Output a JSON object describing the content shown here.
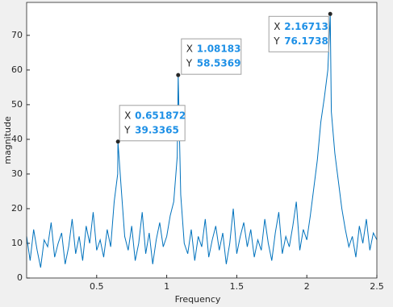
{
  "chart_data": {
    "type": "line",
    "x_label": "Frequency",
    "y_label": "magnitude",
    "x": [
      0,
      0.025,
      0.05,
      0.075,
      0.1,
      0.125,
      0.15,
      0.175,
      0.2,
      0.225,
      0.25,
      0.275,
      0.3,
      0.325,
      0.35,
      0.375,
      0.4,
      0.425,
      0.45,
      0.475,
      0.5,
      0.525,
      0.55,
      0.575,
      0.6,
      0.625,
      0.65,
      0.651872,
      0.675,
      0.7,
      0.725,
      0.75,
      0.775,
      0.8,
      0.825,
      0.85,
      0.875,
      0.9,
      0.925,
      0.95,
      0.975,
      1,
      1.025,
      1.05,
      1.075,
      1.08183,
      1.1,
      1.125,
      1.15,
      1.175,
      1.2,
      1.225,
      1.25,
      1.275,
      1.3,
      1.325,
      1.35,
      1.375,
      1.4,
      1.425,
      1.45,
      1.475,
      1.5,
      1.525,
      1.55,
      1.575,
      1.6,
      1.625,
      1.65,
      1.675,
      1.7,
      1.725,
      1.75,
      1.775,
      1.8,
      1.825,
      1.85,
      1.875,
      1.9,
      1.925,
      1.95,
      1.975,
      2,
      2.025,
      2.05,
      2.075,
      2.1,
      2.125,
      2.15,
      2.16713,
      2.175,
      2.2,
      2.225,
      2.25,
      2.275,
      2.3,
      2.325,
      2.35,
      2.375,
      2.4,
      2.425,
      2.45,
      2.475,
      2.5
    ],
    "series": [
      {
        "color": "#0072bd",
        "values": [
          12,
          5,
          14,
          8,
          3,
          11,
          9,
          16,
          6,
          10,
          13,
          4,
          9,
          17,
          7,
          12,
          5,
          15,
          10,
          19,
          8,
          11,
          6,
          14,
          9,
          22,
          30,
          39.3365,
          26,
          12,
          8,
          15,
          5,
          10,
          19,
          7,
          13,
          4,
          11,
          16,
          9,
          12,
          18,
          22,
          35,
          58.5369,
          24,
          10,
          7,
          14,
          5,
          12,
          9,
          17,
          6,
          11,
          15,
          8,
          13,
          4,
          10,
          20,
          7,
          12,
          16,
          9,
          14,
          6,
          11,
          8,
          17,
          10,
          5,
          13,
          19,
          7,
          12,
          9,
          15,
          22,
          8,
          14,
          11,
          18,
          26,
          34,
          45,
          52,
          60,
          76.1738,
          48,
          36,
          28,
          20,
          14,
          9,
          12,
          6,
          15,
          10,
          17,
          8,
          13,
          11
        ]
      }
    ],
    "xlim": [
      0,
      2.5
    ],
    "xticks": [
      0.5,
      1,
      1.5,
      2,
      2.5
    ],
    "ylim": [
      0,
      79.5
    ],
    "yticks": [
      0,
      10,
      20,
      30,
      40,
      50,
      60,
      70
    ],
    "datatips": [
      {
        "x_label": "X",
        "x": 0.651872,
        "y_label": "Y",
        "y": 39.3365
      },
      {
        "x_label": "X",
        "x": 1.08183,
        "y_label": "Y",
        "y": 58.5369
      },
      {
        "x_label": "X",
        "x": 2.16713,
        "y_label": "Y",
        "y": 76.1738
      }
    ]
  }
}
